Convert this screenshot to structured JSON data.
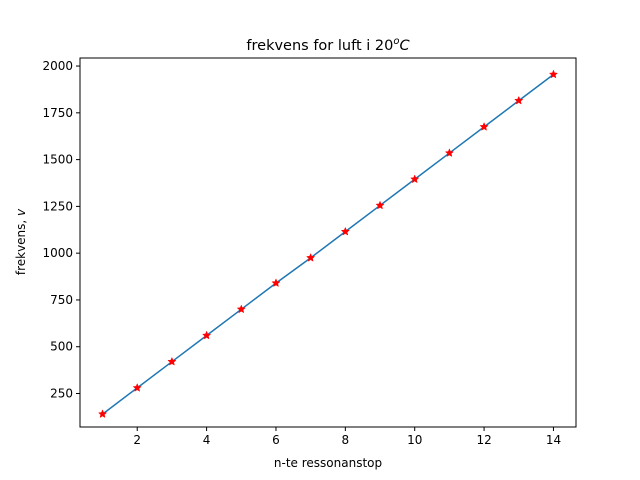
{
  "chart_data": {
    "type": "line",
    "title": {
      "prefix": "frekvens for luft i 20",
      "sup": "o",
      "suffix": "C"
    },
    "xlabel": "n-te ressonanstop",
    "ylabel": {
      "prefix": "frekvens, ",
      "var": "v"
    },
    "xlim": [
      0.35,
      14.65
    ],
    "ylim": [
      71,
      2043
    ],
    "xticks": [
      2,
      4,
      6,
      8,
      10,
      12,
      14
    ],
    "yticks": [
      250,
      500,
      750,
      1000,
      1250,
      1500,
      1750,
      2000
    ],
    "grid": false,
    "series": [
      {
        "x": [
          1,
          2,
          3,
          4,
          5,
          6,
          7,
          8,
          9,
          10,
          11,
          12,
          13,
          14
        ],
        "y": [
          140,
          280,
          420,
          560,
          700,
          840,
          975,
          1115,
          1255,
          1395,
          1535,
          1675,
          1815,
          1955
        ],
        "line_color": "#1f77b4",
        "marker": "star",
        "marker_color": "#ff0000"
      }
    ]
  }
}
